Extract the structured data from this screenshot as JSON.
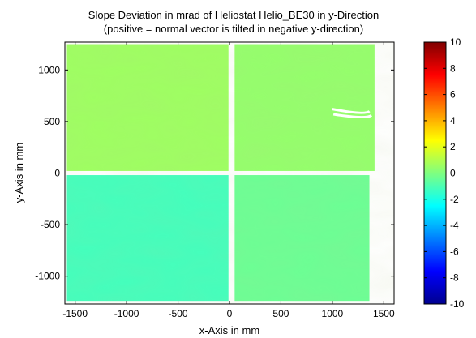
{
  "chart_data": {
    "type": "heatmap",
    "title": "Slope Deviation in mrad of Heliostat Helio_BE30 in y-Direction",
    "subtitle": "(positive = normal vector is tilted in negative y-direction)",
    "xlabel": "x-Axis in mm",
    "ylabel": "y-Axis in mm",
    "xlim": [
      -1600,
      1600
    ],
    "ylim": [
      -1270,
      1270
    ],
    "x_ticks": [
      -1500,
      -1000,
      -500,
      0,
      500,
      1000,
      1500
    ],
    "x_tick_labels": [
      "-1500",
      "-1000",
      "-500",
      "0",
      "500",
      "1000",
      "1500"
    ],
    "y_ticks": [
      -1000,
      -500,
      0,
      500,
      1000
    ],
    "y_tick_labels": [
      "-1000",
      "-500",
      "0",
      "500",
      "1000"
    ],
    "colorbar": {
      "range": [
        -10,
        10
      ],
      "ticks": [
        -10,
        -8,
        -6,
        -4,
        -2,
        0,
        2,
        4,
        6,
        8,
        10
      ],
      "tick_labels": [
        "-10",
        "-8",
        "-6",
        "-4",
        "-2",
        "0",
        "2",
        "4",
        "6",
        "8",
        "10"
      ],
      "colormap": "jet"
    },
    "facets": [
      {
        "name": "upper-left",
        "x_range": [
          -1580,
          -10
        ],
        "y_range": [
          20,
          1250
        ],
        "mean_value": 0.6
      },
      {
        "name": "upper-right",
        "x_range": [
          50,
          1410
        ],
        "y_range": [
          20,
          1250
        ],
        "mean_value": 0.4
      },
      {
        "name": "lower-left",
        "x_range": [
          -1580,
          -10
        ],
        "y_range": [
          -1240,
          -20
        ],
        "mean_value": -1.2
      },
      {
        "name": "lower-right",
        "x_range": [
          50,
          1360
        ],
        "y_range": [
          -1240,
          -20
        ],
        "mean_value": -0.4
      }
    ]
  }
}
